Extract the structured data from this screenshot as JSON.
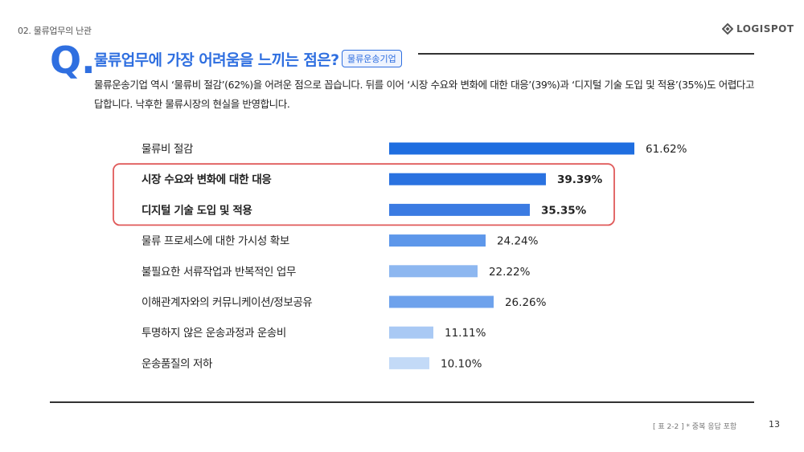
{
  "header": {
    "section_label": "02. 물류업무의 난관",
    "logo_text": "LOGISPOT"
  },
  "question": {
    "letter": "Q.",
    "title": "물류업무에 가장 어려움을 느끼는 점은?",
    "tag": "물류운송기업",
    "description": "물류운송기업 역시 ‘물류비 절감’(62%)을 어려운 점으로 꼽습니다. 뒤를 이어 ‘시장 수요와 변화에 대한 대응’(39%)과 ‘디지털 기술 도입 및 적용’(35%)도 어렵다고 답합니다. 낙후한 물류시장의 현실을 반영합니다."
  },
  "chart_data": {
    "type": "bar",
    "orientation": "horizontal",
    "categories": [
      "물류비 절감",
      "시장 수요와 변화에 대한 대응",
      "디지털 기술 도입 및 적용",
      "물류 프로세스에 대한 가시성 확보",
      "불필요한 서류작업과 반복적인 업무",
      "이해관계자와의 커뮤니케이션/정보공유",
      "투명하지 않은 운송과정과 운송비",
      "운송품질의 저하"
    ],
    "values": [
      61.62,
      39.39,
      35.35,
      24.24,
      22.22,
      26.26,
      11.11,
      10.1
    ],
    "value_labels": [
      "61.62%",
      "39.39%",
      "35.35%",
      "24.24%",
      "22.22%",
      "26.26%",
      "11.11%",
      "10.10%"
    ],
    "highlighted": [
      1,
      2
    ],
    "bar_colors": [
      "#1f6ee0",
      "#2a72e0",
      "#3b7be2",
      "#5d97ea",
      "#8db7f0",
      "#6ea2ec",
      "#a9c9f4",
      "#c3daf7"
    ],
    "highlight_color": "#e05a5a",
    "grid": false,
    "legend": "none"
  },
  "footer": {
    "note": "[ 표 2-2 ] * 중복 응답 포함",
    "page": "13"
  }
}
